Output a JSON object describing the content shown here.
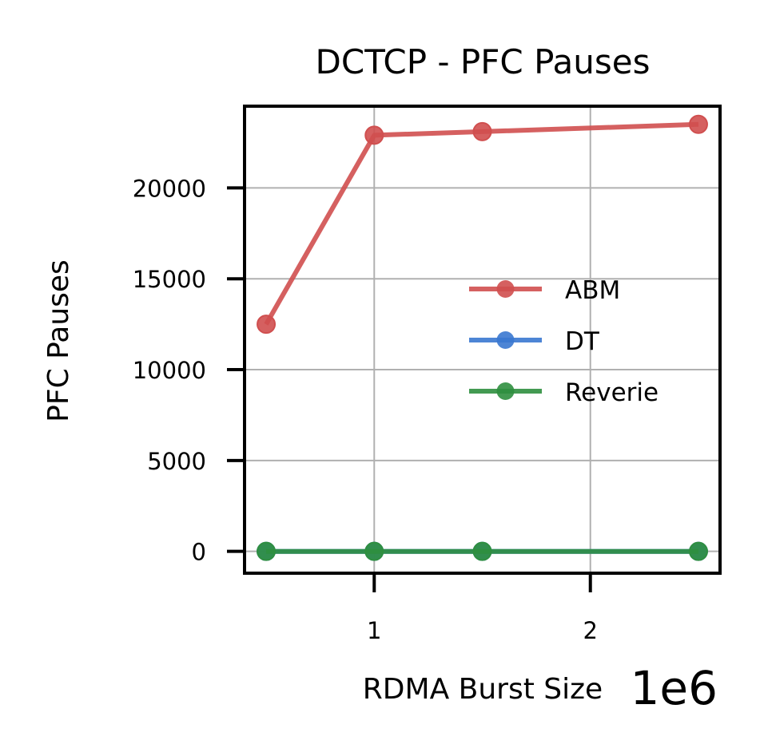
{
  "chart_data": {
    "type": "line",
    "title": "DCTCP - PFC Pauses",
    "xlabel": "RDMA Burst Size",
    "ylabel": "PFC Pauses",
    "x_offset_label": "1e6",
    "x": [
      0.5,
      1.0,
      1.5,
      2.5
    ],
    "xlim": [
      0.4,
      2.6
    ],
    "ylim": [
      -1200,
      24500
    ],
    "xticks": [
      1,
      2
    ],
    "xtick_labels": [
      "1",
      "2"
    ],
    "yticks": [
      0,
      5000,
      10000,
      15000,
      20000
    ],
    "ytick_labels": [
      "0",
      "5000",
      "10000",
      "15000",
      "20000"
    ],
    "grid": true,
    "legend_position": "center-right",
    "series": [
      {
        "name": "ABM",
        "color": "#d04f4f",
        "values": [
          12500,
          22900,
          23100,
          23500
        ]
      },
      {
        "name": "DT",
        "color": "#3a78d0",
        "values": [
          0,
          0,
          0,
          0
        ]
      },
      {
        "name": "Reverie",
        "color": "#2f8f3f",
        "values": [
          0,
          0,
          0,
          0
        ]
      }
    ]
  }
}
